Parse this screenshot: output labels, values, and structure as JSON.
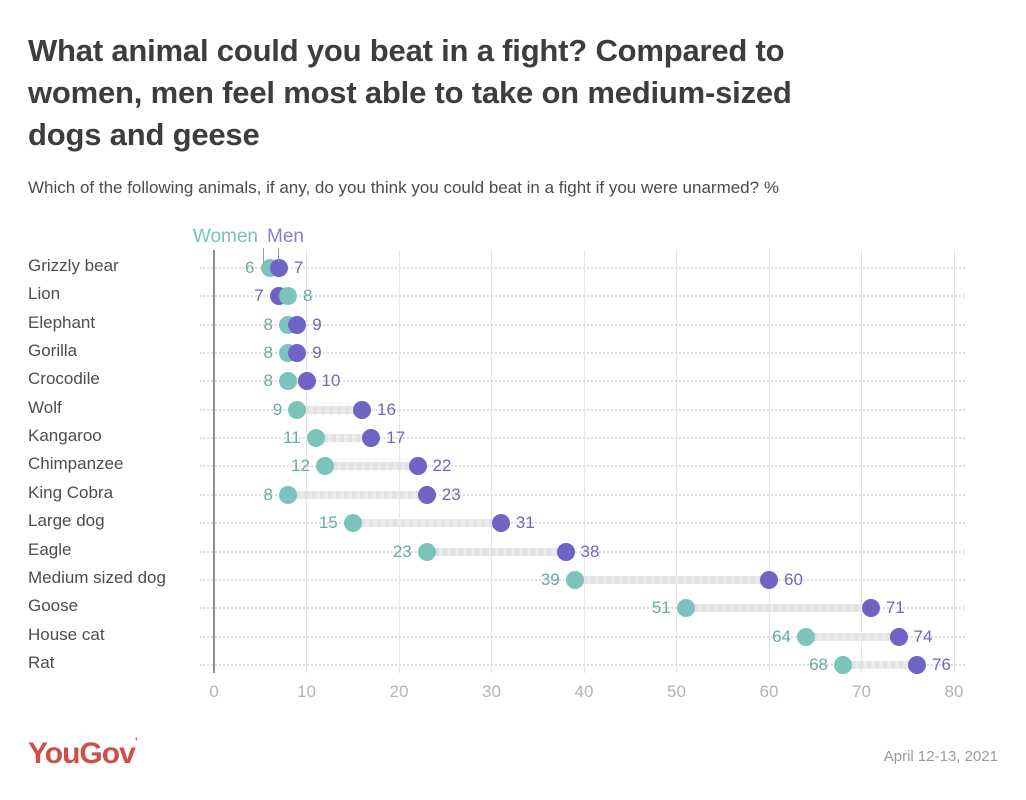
{
  "page": {
    "title": "What animal could you beat in a fight? Compared to women, men feel most able to take on medium-sized dogs and geese",
    "subtitle": "Which of the following animals, if any, do you think you could beat in a fight if you were unarmed? %",
    "footer": {
      "brand": "YouGov",
      "brand_mark": "’",
      "date": "April 12-13, 2021"
    }
  },
  "chart_data": {
    "type": "dumbbell",
    "title": "What animal could you beat in a fight? Compared to women, men feel most able to take on medium-sized dogs and geese",
    "subtitle": "Which of the following animals, if any, do you think you could beat in a fight if you were unarmed? %",
    "categories": [
      "Grizzly bear",
      "Lion",
      "Elephant",
      "Gorilla",
      "Crocodile",
      "Wolf",
      "Kangaroo",
      "Chimpanzee",
      "King Cobra",
      "Large dog",
      "Eagle",
      "Medium sized dog",
      "Goose",
      "House cat",
      "Rat"
    ],
    "series": [
      {
        "name": "Women",
        "color": "#7cc4bb",
        "label_color": "#64ada3",
        "values": [
          6,
          8,
          8,
          8,
          8,
          9,
          11,
          12,
          8,
          15,
          23,
          39,
          51,
          64,
          68
        ]
      },
      {
        "name": "Men",
        "color": "#6f63c5",
        "label_color": "#7265ba",
        "values": [
          7,
          7,
          9,
          9,
          10,
          16,
          17,
          22,
          23,
          31,
          38,
          60,
          71,
          74,
          76
        ]
      }
    ],
    "xlabel": "",
    "ylabel": "",
    "xlim": [
      0,
      80
    ],
    "xticks": [
      0,
      10,
      20,
      30,
      40,
      50,
      60,
      70,
      80
    ],
    "grid": "vertical solid gridlines + dotted horizontal row lines",
    "legend_position": "top-left above first row",
    "colors": {
      "axis": "#909090",
      "gridline": "#e5e5e5",
      "rowline": "#dedede",
      "connector": "#e3e1e4",
      "tick_text": "#b5b3b1",
      "brand_red": "#cf4f48"
    }
  }
}
